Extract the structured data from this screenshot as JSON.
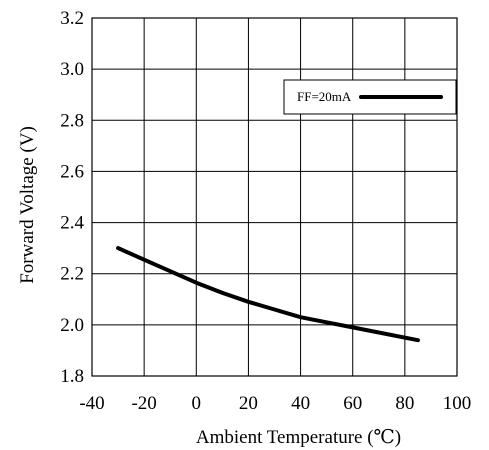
{
  "chart_data": {
    "type": "line",
    "xlabel": "Ambient Temperature (℃)",
    "ylabel": "Forward Voltage (V)",
    "xlim": [
      -40,
      100
    ],
    "ylim": [
      1.8,
      3.2
    ],
    "x_ticks": [
      "-40",
      "-20",
      "0",
      "20",
      "40",
      "60",
      "80",
      "100"
    ],
    "y_ticks": [
      "1.8",
      "2.0",
      "2.2",
      "2.4",
      "2.6",
      "2.8",
      "3.0",
      "3.2"
    ],
    "grid": true,
    "legend_position": "top-right",
    "series": [
      {
        "name": "FF=20mA",
        "color": "#000000",
        "x": [
          -30,
          -20,
          -10,
          0,
          10,
          20,
          30,
          40,
          50,
          60,
          70,
          85
        ],
        "y": [
          2.3,
          2.255,
          2.21,
          2.165,
          2.125,
          2.09,
          2.06,
          2.03,
          2.01,
          1.99,
          1.97,
          1.94
        ]
      }
    ]
  }
}
